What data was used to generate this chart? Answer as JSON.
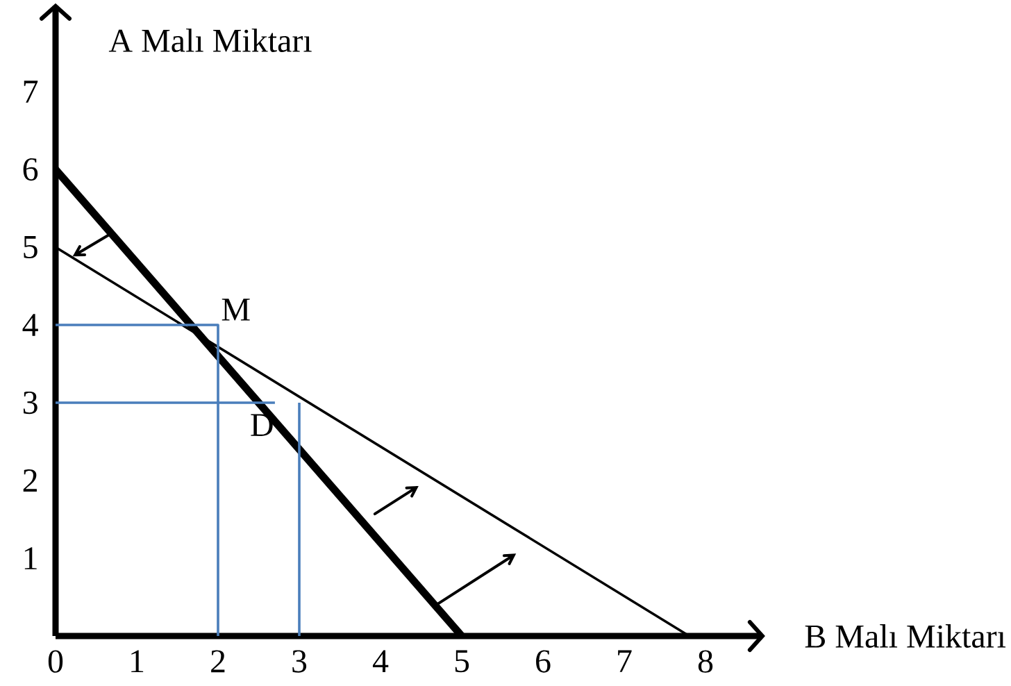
{
  "chart_data": {
    "type": "line",
    "xlabel": "B Malı Miktarı",
    "ylabel": "A Malı Miktarı",
    "xlim": [
      0,
      8.7
    ],
    "ylim": [
      0,
      8.1
    ],
    "xticks": [
      0,
      1,
      2,
      3,
      4,
      5,
      6,
      7,
      8
    ],
    "yticks": [
      1,
      2,
      3,
      4,
      5,
      6,
      7
    ],
    "marker": "none",
    "line_style": "solid",
    "series": [
      {
        "color": "#000000",
        "x": [
          0,
          5
        ],
        "values": [
          6,
          0
        ]
      },
      {
        "color": "#000000",
        "x": [
          0,
          7.8
        ],
        "values": [
          5,
          0
        ]
      },
      {
        "color": "#4a7ebb",
        "x": [
          0,
          2,
          2
        ],
        "values": [
          4,
          4,
          0
        ]
      },
      {
        "color": "#4a7ebb",
        "x": [
          0,
          2.7
        ],
        "values": [
          3,
          3
        ]
      },
      {
        "color": "#4a7ebb",
        "x": [
          3,
          3
        ],
        "values": [
          3,
          0
        ]
      }
    ],
    "annotations": [
      {
        "text": "M",
        "x": 2,
        "y": 4
      },
      {
        "text": "D",
        "x": 3,
        "y": 3
      }
    ]
  }
}
